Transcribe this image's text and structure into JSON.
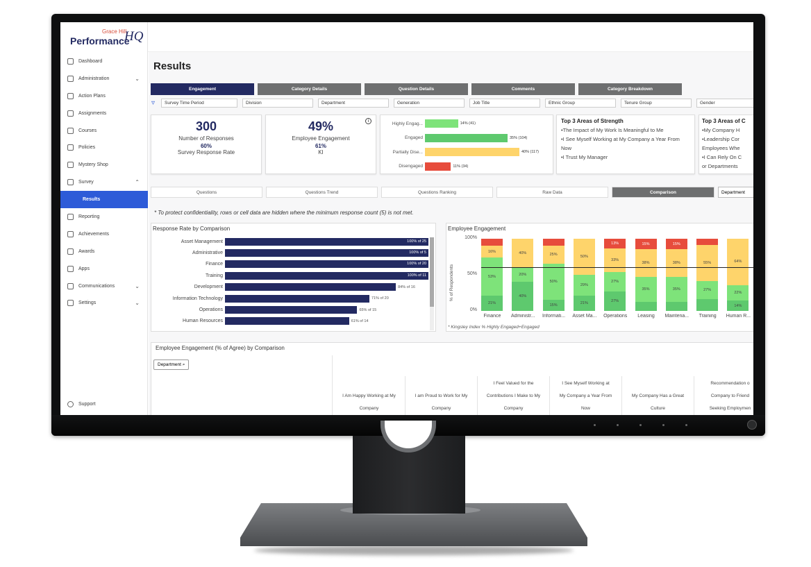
{
  "app": {
    "brand_small": "Grace Hill",
    "brand_main": "Performance",
    "brand_suffix": "HQ"
  },
  "sidebar": {
    "items": [
      {
        "label": "Dashboard",
        "icon": "dashboard-icon"
      },
      {
        "label": "Administration",
        "icon": "people-icon",
        "chevron": "⌄"
      },
      {
        "label": "Action Plans",
        "icon": "gear-icon"
      },
      {
        "label": "Assignments",
        "icon": "person-icon"
      },
      {
        "label": "Courses",
        "icon": "book-icon"
      },
      {
        "label": "Policies",
        "icon": "document-icon"
      },
      {
        "label": "Mystery Shop",
        "icon": "check-circle-icon"
      },
      {
        "label": "Survey",
        "icon": "chart-icon",
        "chevron": "⌃"
      },
      {
        "label": "Results",
        "active": true
      },
      {
        "label": "Reporting",
        "icon": "file-icon"
      },
      {
        "label": "Achievements",
        "icon": "trophy-icon"
      },
      {
        "label": "Awards",
        "icon": "award-icon"
      },
      {
        "label": "Apps",
        "icon": "grid-icon"
      },
      {
        "label": "Communications",
        "icon": "chat-icon",
        "chevron": "⌄"
      },
      {
        "label": "Settings",
        "icon": "gear-icon",
        "chevron": "⌄"
      }
    ],
    "support": "Support"
  },
  "page": {
    "title": "Results"
  },
  "tabs": [
    "Engagement",
    "Category Details",
    "Question Details",
    "Comments",
    "Category Breakdown"
  ],
  "filters": {
    "icon": "funnel-icon",
    "items": [
      "Survey Time Period",
      "Division",
      "Department",
      "Generation",
      "Job Title",
      "Ethnic Group",
      "Tenure Group",
      "Gender"
    ]
  },
  "summary": {
    "responses": {
      "value": "300",
      "label": "Number of Responses",
      "pct": "60%",
      "pct_label": "Survey Response Rate"
    },
    "engagement": {
      "value": "49%",
      "label": "Employee Engagement",
      "pct": "61%",
      "pct_label": "KI"
    },
    "engagement_levels": [
      {
        "label": "Highly Engag...",
        "fraction": 0.14,
        "value_label": "14% (41)",
        "color": "#7ee37a"
      },
      {
        "label": "Engaged",
        "fraction": 0.35,
        "value_label": "35% (104)",
        "color": "#5ec96e"
      },
      {
        "label": "Partially Dise...",
        "fraction": 0.4,
        "value_label": "40% (117)",
        "color": "#fed46b"
      },
      {
        "label": "Disengaged",
        "fraction": 0.11,
        "value_label": "11% (34)",
        "color": "#e74c3c"
      }
    ],
    "strengths": {
      "title": "Top 3 Areas of Strength",
      "items": [
        "•The Impact of My Work Is Meaningful to Me",
        "•I See Myself Working at My Company a Year From Now",
        "•I Trust My Manager"
      ]
    },
    "strengths2": {
      "title": "Top 3 Areas of C",
      "items": [
        "•My Company H",
        "•Leadership Cor",
        "Employees Whe",
        "•I Can Rely On C",
        "or Departments"
      ]
    }
  },
  "subtabs": [
    "Questions",
    "Questions Trend",
    "Questions Ranking",
    "Raw Data",
    "Comparison"
  ],
  "department_select": "Department",
  "notice": "* To protect confidentiality, rows or cell data are hidden where the minimum response count (5) is not met.",
  "response_rate": {
    "title": "Response Rate by Comparison",
    "rows": [
      {
        "label": "Asset Management",
        "pct": 100,
        "text": "100% of 25"
      },
      {
        "label": "Administrative",
        "pct": 100,
        "text": "100% of 5"
      },
      {
        "label": "Finance",
        "pct": 100,
        "text": "100% of 20"
      },
      {
        "label": "Training",
        "pct": 100,
        "text": "100% of 11"
      },
      {
        "label": "Development",
        "pct": 84,
        "text": "84% of 16"
      },
      {
        "label": "Information Technology",
        "pct": 71,
        "text": "71% of 20"
      },
      {
        "label": "Operations",
        "pct": 65,
        "text": "65% of 15"
      },
      {
        "label": "Human Resources",
        "pct": 61,
        "text": "61% of 14"
      }
    ]
  },
  "chart_data": {
    "type": "bar",
    "title": "Employee Engagement",
    "ylabel": "% of Respondents",
    "yticks": [
      "100%",
      "50%",
      "0%"
    ],
    "ylim": [
      0,
      100
    ],
    "categories": [
      "Finance",
      "Administr...",
      "Informati...",
      "Asset Ma...",
      "Operations",
      "Leasing",
      "Maintena...",
      "Training",
      "Human R..."
    ],
    "stacked": true,
    "series": [
      {
        "name": "Highly Engaged",
        "color": "#5ec96e",
        "values": [
          21,
          40,
          15,
          21,
          27,
          13,
          13,
          18,
          14
        ],
        "labels": [
          "21%",
          "40%",
          "15%",
          "21%",
          "27%",
          "",
          "",
          "",
          "14%"
        ]
      },
      {
        "name": "Engaged",
        "color": "#7ee37a",
        "values": [
          53,
          20,
          50,
          29,
          27,
          35,
          35,
          27,
          22
        ],
        "labels": [
          "53%",
          "20%",
          "50%",
          "29%",
          "27%",
          "35%",
          "35%",
          "27%",
          "22%"
        ]
      },
      {
        "name": "Partially Disengaged",
        "color": "#fed46b",
        "values": [
          16,
          40,
          25,
          50,
          33,
          38,
          38,
          55,
          64
        ],
        "labels": [
          "16%",
          "40%",
          "25%",
          "50%",
          "33%",
          "38%",
          "38%",
          "55%",
          "64%"
        ]
      },
      {
        "name": "Disengaged",
        "color": "#e74c3c",
        "values": [
          10,
          0,
          10,
          0,
          13,
          15,
          15,
          10,
          0
        ],
        "labels": [
          "",
          "",
          "",
          "",
          "13%",
          "15%",
          "15%",
          "",
          ""
        ]
      }
    ],
    "reference_line": 61,
    "footnote": "* Kingsley Index % Highly Engaged+Engaged"
  },
  "agree_table": {
    "title": "Employee Engagement (% of Agree) by Comparison",
    "group_button": "Department",
    "columns": [
      [
        "I Am Happy Working at My",
        "Company"
      ],
      [
        "I am Proud to Work for My",
        "Company"
      ],
      [
        "I Feel Valued for the",
        "Contributions I Make to My",
        "Company"
      ],
      [
        "I See Myself Working at",
        "My Company a Year From",
        "Now"
      ],
      [
        "My Company Has a Great",
        "Culture"
      ],
      [
        "Recommendation o",
        "Company to Friend",
        "Seeking Employmen"
      ]
    ]
  }
}
